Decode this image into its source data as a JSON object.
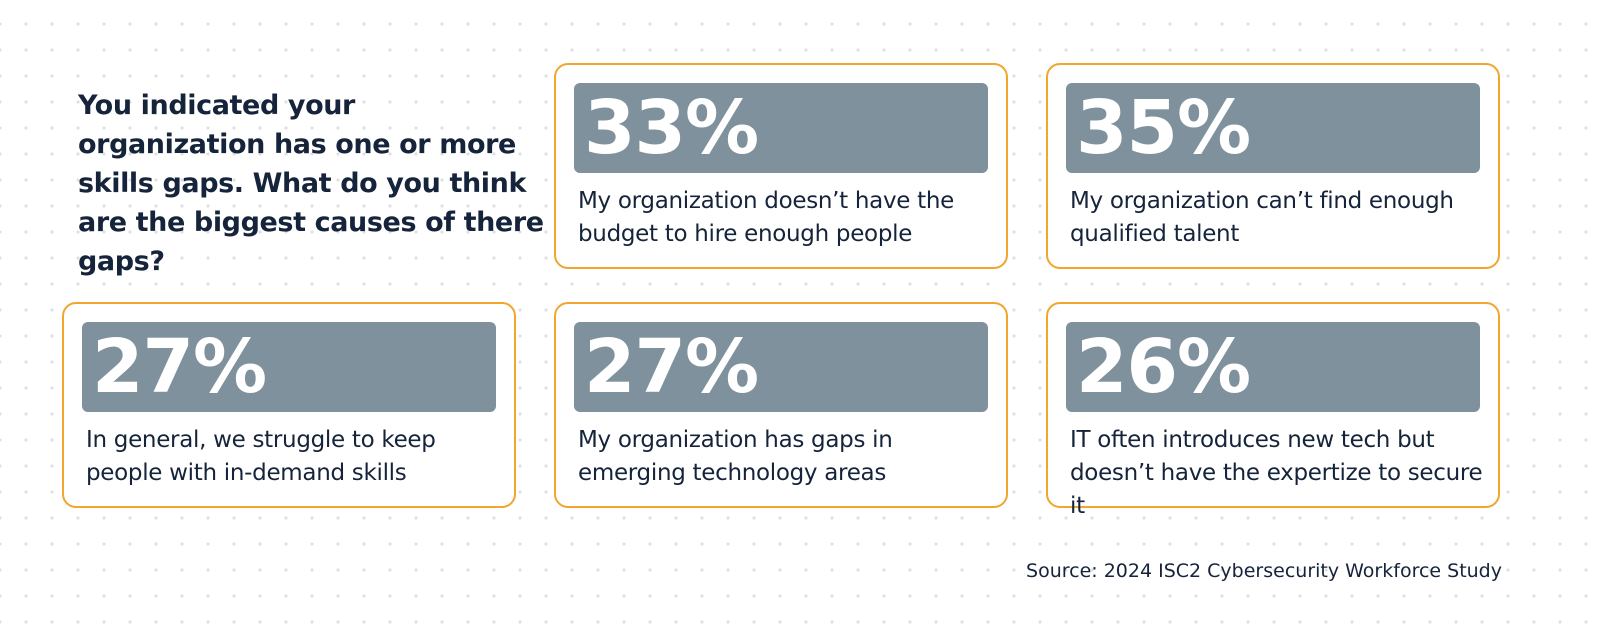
{
  "question": "You indicated your organization has one or more skills gaps. What do you think are the biggest causes of there gaps?",
  "source": "Source: 2024 ISC2 Cybersecurity Workforce Study",
  "colors": {
    "card_border": "#f0a62f",
    "bar_fill": "#7f919c",
    "text": "#15243a"
  },
  "chart_data": {
    "type": "table",
    "title": "You indicated your organization has one or more skills gaps. What do you think are the biggest causes of there gaps?",
    "items": [
      {
        "percent": "33%",
        "value": 33,
        "label": "My organization doesn’t have the budget to hire enough people"
      },
      {
        "percent": "35%",
        "value": 35,
        "label": "My organization can’t find enough qualified talent"
      },
      {
        "percent": "27%",
        "value": 27,
        "label": "In general, we struggle to keep people with in-demand skills"
      },
      {
        "percent": "27%",
        "value": 27,
        "label": "My organization has gaps in emerging technology areas"
      },
      {
        "percent": "26%",
        "value": 26,
        "label": "IT often introduces new tech but doesn’t have the expertize to secure it"
      }
    ]
  }
}
